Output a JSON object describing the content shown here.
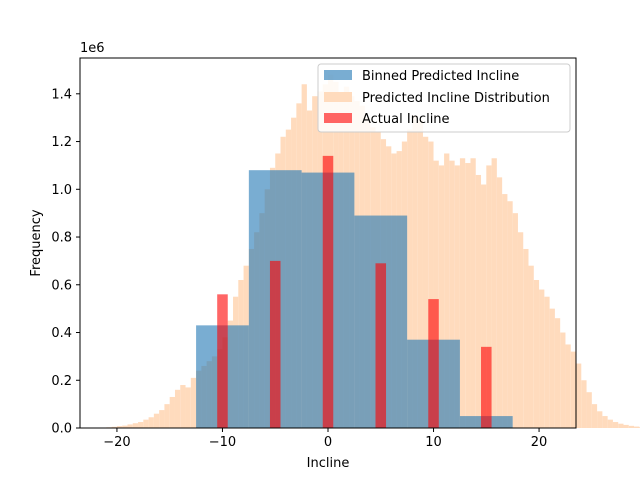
{
  "chart_data": {
    "type": "bar",
    "xlabel": "Incline",
    "ylabel": "Frequency",
    "y_offset_label": "1e6",
    "xlim": [
      -23.5,
      23.5
    ],
    "ylim": [
      0,
      1.55
    ],
    "x_ticks": [
      -20,
      -10,
      0,
      10,
      20
    ],
    "x_tick_labels": [
      "−20",
      "−10",
      "0",
      "10",
      "20"
    ],
    "y_ticks": [
      0.0,
      0.2,
      0.4,
      0.6,
      0.8,
      1.0,
      1.2,
      1.4
    ],
    "y_tick_labels": [
      "0.0",
      "0.2",
      "0.4",
      "0.6",
      "0.8",
      "1.0",
      "1.2",
      "1.4"
    ],
    "grid": false,
    "legend_position": "top-right",
    "colors": {
      "binned": "#1f77b4",
      "distribution": "#ffdbbd",
      "actual": "#ff0000"
    },
    "series": [
      {
        "name": "Binned Predicted Incline",
        "kind": "hist-blocks",
        "edges": [
          -12.5,
          -7.5,
          -2.5,
          2.5,
          7.5,
          12.5,
          17.5
        ],
        "values": [
          0.43,
          1.08,
          1.07,
          0.89,
          0.37,
          0.05
        ]
      },
      {
        "name": "Predicted Incline Distribution",
        "kind": "fine-histogram",
        "x_start": -21,
        "bin_width": 0.5,
        "values": [
          0.003,
          0.005,
          0.008,
          0.01,
          0.015,
          0.02,
          0.025,
          0.035,
          0.045,
          0.06,
          0.075,
          0.1,
          0.13,
          0.16,
          0.18,
          0.17,
          0.21,
          0.24,
          0.26,
          0.28,
          0.3,
          0.33,
          0.38,
          0.45,
          0.55,
          0.62,
          0.68,
          0.75,
          0.82,
          0.9,
          1.0,
          1.09,
          1.15,
          1.22,
          1.25,
          1.3,
          1.36,
          1.44,
          1.33,
          1.39,
          1.41,
          1.44,
          1.48,
          1.45,
          1.4,
          1.43,
          1.39,
          1.37,
          1.35,
          1.3,
          1.26,
          1.24,
          1.21,
          1.18,
          1.15,
          1.16,
          1.2,
          1.25,
          1.31,
          1.29,
          1.22,
          1.2,
          1.12,
          1.1,
          1.15,
          1.12,
          1.1,
          1.13,
          1.11,
          1.13,
          1.06,
          1.02,
          1.1,
          1.13,
          1.05,
          0.98,
          0.95,
          0.9,
          0.82,
          0.75,
          0.68,
          0.62,
          0.58,
          0.55,
          0.5,
          0.46,
          0.4,
          0.35,
          0.32,
          0.27,
          0.2,
          0.15,
          0.1,
          0.07,
          0.05,
          0.035,
          0.025,
          0.018,
          0.013,
          0.009,
          0.006,
          0.004,
          0.002,
          0.001
        ]
      },
      {
        "name": "Actual Incline",
        "kind": "bars",
        "x": [
          -10,
          -5,
          0,
          5,
          10,
          15
        ],
        "width": 1.0,
        "values": [
          0.56,
          0.7,
          1.14,
          0.69,
          0.54,
          0.34
        ]
      }
    ]
  }
}
